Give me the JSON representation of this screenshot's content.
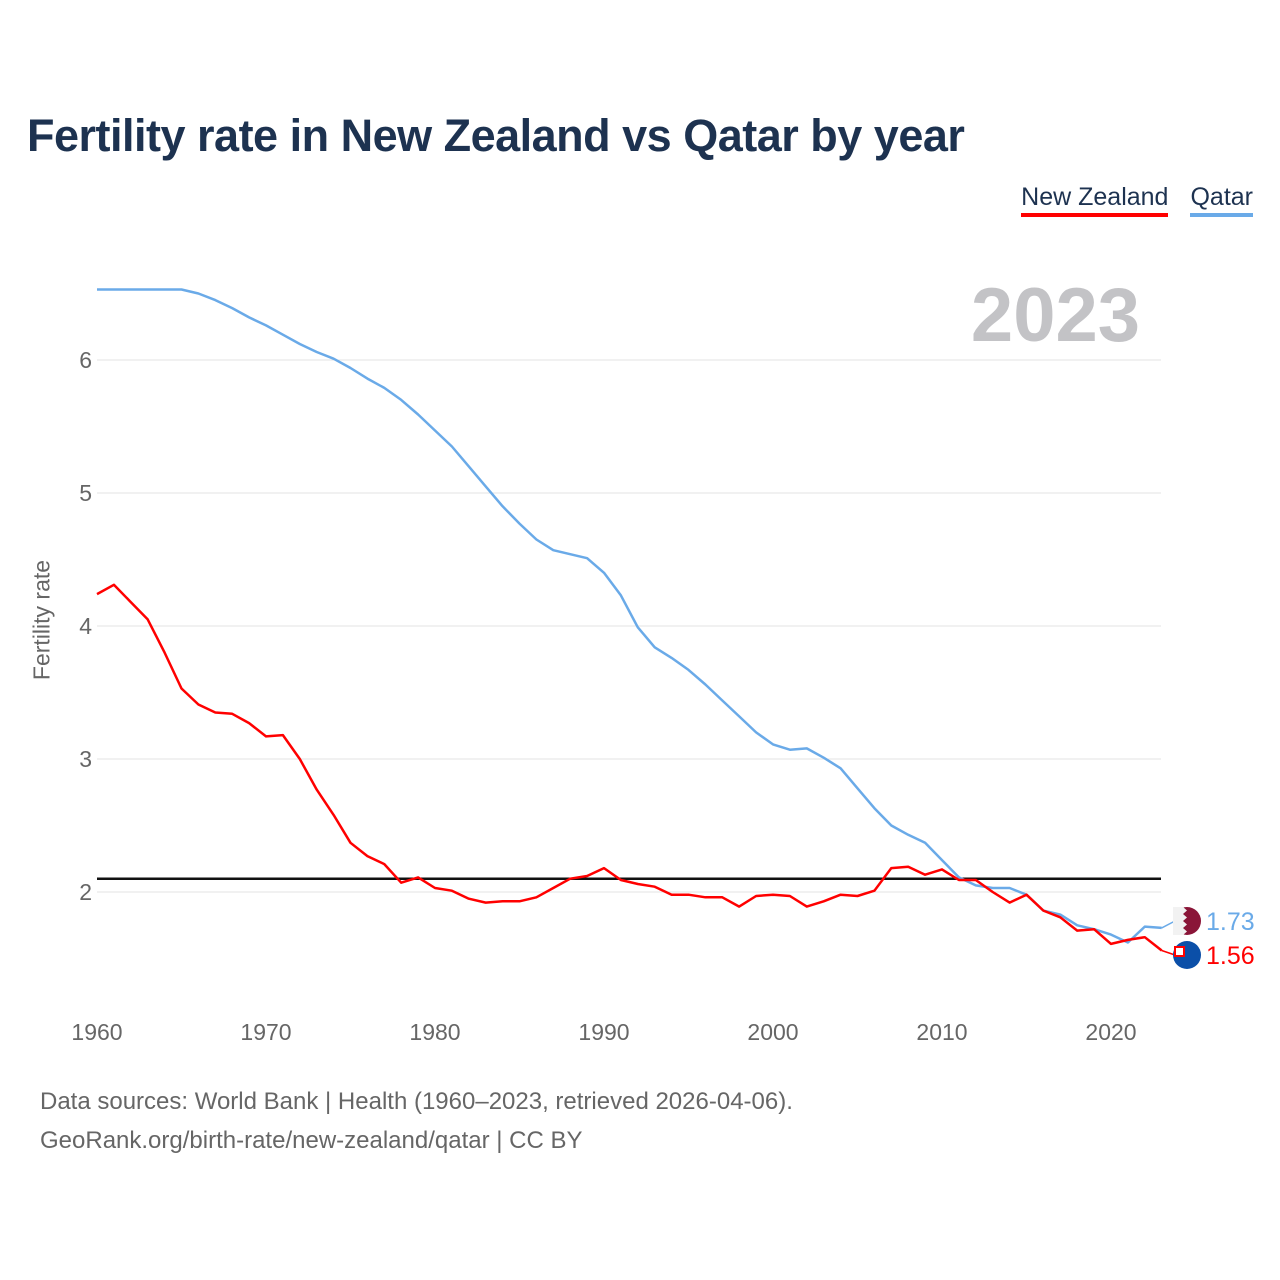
{
  "chart_data": {
    "type": "line",
    "title": "Fertility rate in New Zealand vs Qatar by year",
    "xlabel": "",
    "ylabel": "Fertility rate",
    "xlim": [
      1960,
      2023
    ],
    "ylim": [
      1.4,
      6.6
    ],
    "x_ticks": [
      "1960",
      "1970",
      "1980",
      "1990",
      "2000",
      "2010",
      "2020"
    ],
    "y_ticks": [
      "2",
      "3",
      "4",
      "5",
      "6"
    ],
    "grid": true,
    "legend_position": "top-right",
    "year_label": "2023",
    "reference_line": 2.1,
    "x": [
      1960,
      1961,
      1962,
      1963,
      1964,
      1965,
      1966,
      1967,
      1968,
      1969,
      1970,
      1971,
      1972,
      1973,
      1974,
      1975,
      1976,
      1977,
      1978,
      1979,
      1980,
      1981,
      1982,
      1983,
      1984,
      1985,
      1986,
      1987,
      1988,
      1989,
      1990,
      1991,
      1992,
      1993,
      1994,
      1995,
      1996,
      1997,
      1998,
      1999,
      2000,
      2001,
      2002,
      2003,
      2004,
      2005,
      2006,
      2007,
      2008,
      2009,
      2010,
      2011,
      2012,
      2013,
      2014,
      2015,
      2016,
      2017,
      2018,
      2019,
      2020,
      2021,
      2022,
      2023
    ],
    "series": [
      {
        "name": "New Zealand",
        "color": "#ff0000",
        "end_label": "1.56",
        "values": [
          4.24,
          4.31,
          4.18,
          4.05,
          3.8,
          3.53,
          3.41,
          3.35,
          3.34,
          3.27,
          3.17,
          3.18,
          3.0,
          2.77,
          2.58,
          2.37,
          2.27,
          2.21,
          2.07,
          2.11,
          2.03,
          2.01,
          1.95,
          1.92,
          1.93,
          1.93,
          1.96,
          2.03,
          2.1,
          2.12,
          2.18,
          2.09,
          2.06,
          2.04,
          1.98,
          1.98,
          1.96,
          1.96,
          1.89,
          1.97,
          1.98,
          1.97,
          1.89,
          1.93,
          1.98,
          1.97,
          2.01,
          2.18,
          2.19,
          2.13,
          2.17,
          2.09,
          2.09,
          2.0,
          1.92,
          1.98,
          1.86,
          1.81,
          1.71,
          1.72,
          1.61,
          1.64,
          1.66,
          1.56
        ]
      },
      {
        "name": "Qatar",
        "color": "#6aaae8",
        "end_label": "1.73",
        "values": [
          6.53,
          6.53,
          6.53,
          6.53,
          6.53,
          6.53,
          6.5,
          6.45,
          6.39,
          6.32,
          6.26,
          6.19,
          6.12,
          6.06,
          6.01,
          5.94,
          5.86,
          5.79,
          5.7,
          5.59,
          5.47,
          5.35,
          5.2,
          5.05,
          4.9,
          4.77,
          4.65,
          4.57,
          4.54,
          4.51,
          4.4,
          4.23,
          3.99,
          3.84,
          3.76,
          3.67,
          3.56,
          3.44,
          3.32,
          3.2,
          3.11,
          3.07,
          3.08,
          3.01,
          2.93,
          2.78,
          2.63,
          2.5,
          2.43,
          2.37,
          2.24,
          2.11,
          2.05,
          2.03,
          2.03,
          1.98,
          1.86,
          1.83,
          1.75,
          1.72,
          1.68,
          1.62,
          1.74,
          1.73
        ]
      }
    ]
  },
  "footer": {
    "line1": "Data sources: World Bank | Health (1960–2023, retrieved 2026-04-06).",
    "line2": "GeoRank.org/birth-rate/new-zealand/qatar | CC BY"
  }
}
